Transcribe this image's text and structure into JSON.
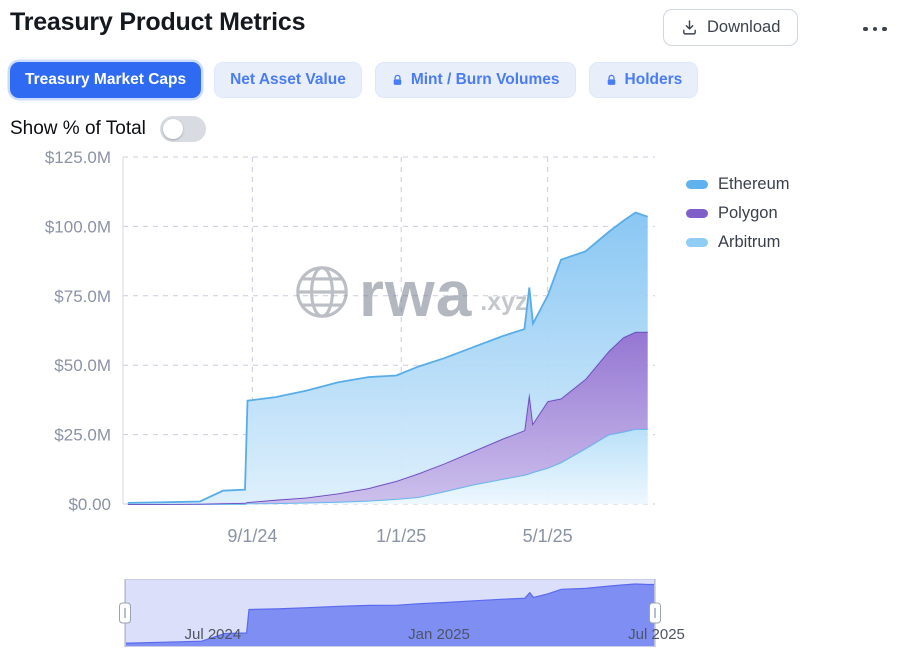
{
  "header": {
    "title": "Treasury Product Metrics",
    "download_label": "Download"
  },
  "tabs": [
    {
      "label": "Treasury Market Caps",
      "active": true,
      "locked": false
    },
    {
      "label": "Net Asset Value",
      "active": false,
      "locked": false
    },
    {
      "label": "Mint / Burn Volumes",
      "active": false,
      "locked": true
    },
    {
      "label": "Holders",
      "active": false,
      "locked": true
    }
  ],
  "toggle": {
    "label": "Show % of Total",
    "state": "off"
  },
  "colors": {
    "accent_blue": "#2f6bf2",
    "inactive_tab_bg": "#e9eefb",
    "inactive_tab_text": "#4a7cf4"
  },
  "watermark": {
    "main": "rwa",
    "suffix": ".xyz"
  },
  "chart_data": {
    "type": "area",
    "stacked": true,
    "unit": "USD millions",
    "ylim": [
      0,
      125
    ],
    "x_domain": [
      "2024-05-18",
      "2025-07-28"
    ],
    "grid": "dashed",
    "legend_position": "right",
    "x": [
      "2024-05-22",
      "2024-06-20",
      "2024-07-20",
      "2024-08-08",
      "2024-08-26",
      "2024-08-28",
      "2024-09-20",
      "2024-10-15",
      "2024-11-10",
      "2024-12-05",
      "2024-12-28",
      "2025-01-15",
      "2025-02-05",
      "2025-03-01",
      "2025-03-25",
      "2025-04-12",
      "2025-04-16",
      "2025-04-19",
      "2025-05-01",
      "2025-05-12",
      "2025-06-01",
      "2025-06-20",
      "2025-07-02",
      "2025-07-12",
      "2025-07-22"
    ],
    "series": [
      {
        "name": "Ethereum",
        "color": "#58ade9",
        "legend_color": "#60b2ef",
        "fill_top": "#83c4f2",
        "fill_bottom": "#ddeffc",
        "values": [
          0.4,
          0.6,
          0.8,
          4.5,
          4.8,
          36.5,
          37,
          38.5,
          40,
          40,
          38,
          38.5,
          38,
          37.5,
          37,
          36.5,
          38,
          36,
          38,
          50,
          46,
          43,
          42,
          43,
          41.5
        ]
      },
      {
        "name": "Polygon",
        "color": "#6d48bf",
        "legend_color": "#8060c8",
        "fill_top": "#8f6fd0",
        "fill_bottom": "#cabdeb",
        "values": [
          0,
          0,
          0.1,
          0.3,
          0.4,
          0.5,
          1.2,
          1.8,
          3,
          4.5,
          6.5,
          8.5,
          10,
          12,
          14.5,
          16,
          29,
          17.5,
          24,
          23,
          25,
          30,
          34,
          35,
          35
        ]
      },
      {
        "name": "Arbitrum",
        "color": "#62b6ee",
        "legend_color": "#8fcdf4",
        "fill_top": "#b6dff8",
        "fill_bottom": "#edf7fe",
        "values": [
          0,
          0,
          0,
          0,
          0,
          0.2,
          0.3,
          0.5,
          0.8,
          1.2,
          1.8,
          2.5,
          4.5,
          7,
          9,
          10.5,
          11,
          11.5,
          13,
          15,
          20,
          25,
          26,
          27,
          27
        ]
      }
    ],
    "stack_order_bottom_to_top": [
      "Arbitrum",
      "Polygon",
      "Ethereum"
    ],
    "y_ticks": [
      {
        "value": 0,
        "label": "$0.00"
      },
      {
        "value": 25,
        "label": "$25.0M"
      },
      {
        "value": 50,
        "label": "$50.0M"
      },
      {
        "value": 75,
        "label": "$75.0M"
      },
      {
        "value": 100,
        "label": "$100.0M"
      },
      {
        "value": 125,
        "label": "$125.0M"
      }
    ],
    "x_ticks": [
      {
        "date": "2024-09-01",
        "label": "9/1/24"
      },
      {
        "date": "2025-01-01",
        "label": "1/1/25"
      },
      {
        "date": "2025-05-01",
        "label": "5/1/25"
      }
    ],
    "navigator": {
      "background": "#dcdff9",
      "area_color": "#7e8ef2",
      "line_color": "#5a6aee",
      "labels": [
        {
          "date": "2024-07-01",
          "label": "Jul 2024"
        },
        {
          "date": "2025-01-01",
          "label": "Jan 2025"
        },
        {
          "date": "2025-07-01",
          "label": "Jul 2025"
        }
      ]
    }
  }
}
